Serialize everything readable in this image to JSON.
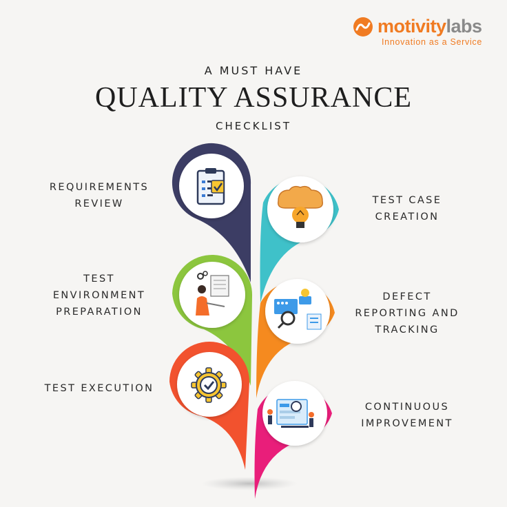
{
  "brand": {
    "name_part1": "motivity",
    "name_part2": "labs",
    "tagline": "Innovation as a Service",
    "colors": {
      "orange": "#f07b22",
      "gray": "#8a8a8a"
    }
  },
  "title": {
    "line1": "A MUST HAVE",
    "line2": "QUALITY ASSURANCE",
    "line3": "CHECKLIST"
  },
  "steps": [
    {
      "lines": [
        "REQUIREMENTS",
        "REVIEW"
      ],
      "color": "#3c3d64",
      "icon": "clipboard-checklist-icon"
    },
    {
      "lines": [
        "TEST CASE",
        "CREATION"
      ],
      "color": "#3fc1c9",
      "icon": "lightbulb-brain-icon"
    },
    {
      "lines": [
        "TEST",
        "ENVIRONMENT",
        "PREPARATION"
      ],
      "color": "#8cc63e",
      "icon": "person-at-desk-icon"
    },
    {
      "lines": [
        "DEFECT",
        "REPORTING AND",
        "TRACKING"
      ],
      "color": "#f58a1f",
      "icon": "dashboard-magnifier-icon"
    },
    {
      "lines": [
        "TEST EXECUTION"
      ],
      "color": "#f2522e",
      "icon": "gear-check-icon"
    },
    {
      "lines": [
        "CONTINUOUS",
        "IMPROVEMENT"
      ],
      "color": "#e91e7a",
      "icon": "team-growth-icon"
    }
  ]
}
